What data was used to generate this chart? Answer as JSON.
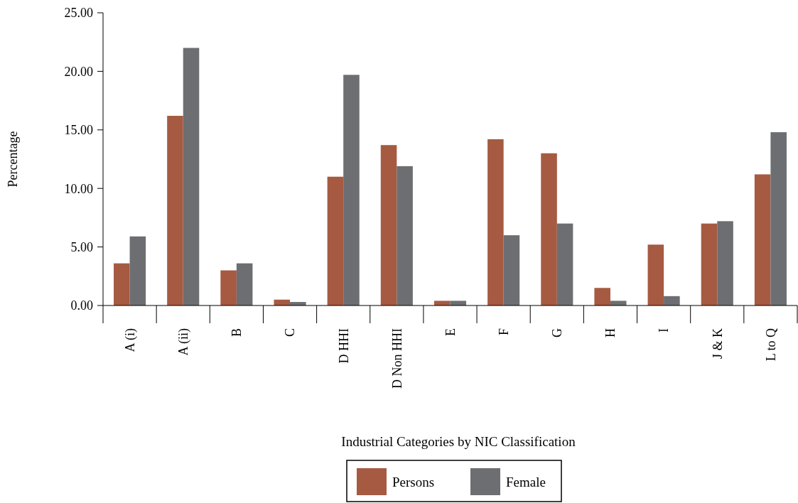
{
  "chart_data": {
    "type": "bar",
    "xlabel": "Industrial Categories by NIC Classification",
    "ylabel": "Percentage",
    "categories": [
      "A (i)",
      "A (ii)",
      "B",
      "C",
      "D HHI",
      "D Non HHI",
      "E",
      "F",
      "G",
      "H",
      "I",
      "J & K",
      "L to Q"
    ],
    "series": [
      {
        "name": "Persons",
        "color": "#a65a42",
        "values": [
          3.6,
          16.2,
          3.0,
          0.5,
          11.0,
          13.7,
          0.4,
          14.2,
          13.0,
          1.5,
          5.2,
          7.0,
          11.2
        ]
      },
      {
        "name": "Female",
        "color": "#6d6e71",
        "values": [
          5.9,
          22.0,
          3.6,
          0.3,
          19.7,
          11.9,
          0.4,
          6.0,
          7.0,
          0.4,
          0.8,
          7.2,
          14.8
        ]
      }
    ],
    "ylim": [
      0,
      25
    ],
    "yticks": [
      {
        "value": 0,
        "label": "0.00"
      },
      {
        "value": 5,
        "label": "5.00"
      },
      {
        "value": 10,
        "label": "10.00"
      },
      {
        "value": 15,
        "label": "15.00"
      },
      {
        "value": 20,
        "label": "20.00"
      },
      {
        "value": 25,
        "label": "25.00"
      }
    ],
    "legend": "bottom",
    "grid": false
  }
}
